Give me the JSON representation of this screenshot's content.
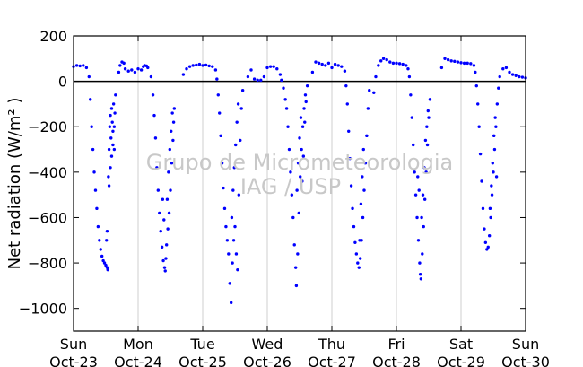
{
  "chart_data": {
    "type": "scatter",
    "title": "",
    "ylabel": "Net radiation (W/m² )",
    "xlabel": "",
    "ylim": [
      -1100,
      200
    ],
    "yticks": [
      200,
      0,
      -200,
      -400,
      -600,
      -800,
      -1000
    ],
    "ytick_labels": [
      "200",
      "0",
      "−200",
      "−400",
      "−600",
      "−800",
      "−1000"
    ],
    "xlim": [
      0,
      7
    ],
    "xticks": [
      {
        "value": 0,
        "day": "Sun",
        "date": "Oct-23"
      },
      {
        "value": 1,
        "day": "Mon",
        "date": "Oct-24"
      },
      {
        "value": 2,
        "day": "Tue",
        "date": "Oct-25"
      },
      {
        "value": 3,
        "day": "Wed",
        "date": "Oct-26"
      },
      {
        "value": 4,
        "day": "Thu",
        "date": "Oct-27"
      },
      {
        "value": 5,
        "day": "Fri",
        "date": "Oct-28"
      },
      {
        "value": 6,
        "day": "Sat",
        "date": "Oct-29"
      },
      {
        "value": 7,
        "day": "Sun",
        "date": "Oct-30"
      }
    ],
    "grid": "vertical",
    "zero_line": true,
    "series_color": "#0000ff",
    "watermark": [
      "Grupo de Micrometeorologia",
      "IAG / USP"
    ],
    "series": [
      {
        "values": [
          [
            0.0,
            65
          ],
          [
            0.05,
            70
          ],
          [
            0.1,
            68
          ],
          [
            0.15,
            70
          ],
          [
            0.2,
            60
          ],
          [
            0.24,
            20
          ],
          [
            0.26,
            -80
          ],
          [
            0.28,
            -200
          ],
          [
            0.3,
            -300
          ],
          [
            0.32,
            -400
          ],
          [
            0.34,
            -480
          ],
          [
            0.36,
            -560
          ],
          [
            0.38,
            -640
          ],
          [
            0.4,
            -700
          ],
          [
            0.42,
            -740
          ],
          [
            0.44,
            -770
          ],
          [
            0.46,
            -790
          ],
          [
            0.48,
            -800
          ],
          [
            0.5,
            -810
          ],
          [
            0.52,
            -820
          ],
          [
            0.53,
            -830
          ],
          [
            0.51,
            -700
          ],
          [
            0.52,
            -660
          ],
          [
            0.54,
            -420
          ],
          [
            0.55,
            -300
          ],
          [
            0.56,
            -200
          ],
          [
            0.57,
            -150
          ],
          [
            0.58,
            -250
          ],
          [
            0.59,
            -120
          ],
          [
            0.6,
            -180
          ],
          [
            0.61,
            -280
          ],
          [
            0.62,
            -100
          ],
          [
            0.63,
            -200
          ],
          [
            0.64,
            -140
          ],
          [
            0.65,
            -60
          ],
          [
            0.55,
            -460
          ],
          [
            0.57,
            -380
          ],
          [
            0.59,
            -330
          ],
          [
            0.61,
            -220
          ],
          [
            0.63,
            -300
          ],
          [
            0.7,
            40
          ],
          [
            0.72,
            70
          ],
          [
            0.75,
            85
          ],
          [
            0.78,
            80
          ],
          [
            0.8,
            55
          ],
          [
            0.85,
            45
          ],
          [
            0.9,
            50
          ],
          [
            0.95,
            40
          ],
          [
            1.0,
            55
          ],
          [
            1.05,
            50
          ],
          [
            1.08,
            65
          ],
          [
            1.1,
            70
          ],
          [
            1.13,
            68
          ],
          [
            1.15,
            60
          ],
          [
            1.2,
            20
          ],
          [
            1.23,
            -60
          ],
          [
            1.25,
            -150
          ],
          [
            1.27,
            -250
          ],
          [
            1.29,
            -380
          ],
          [
            1.31,
            -480
          ],
          [
            1.33,
            -580
          ],
          [
            1.35,
            -660
          ],
          [
            1.37,
            -730
          ],
          [
            1.39,
            -790
          ],
          [
            1.41,
            -820
          ],
          [
            1.42,
            -835
          ],
          [
            1.43,
            -780
          ],
          [
            1.38,
            -520
          ],
          [
            1.4,
            -610
          ],
          [
            1.44,
            -720
          ],
          [
            1.46,
            -650
          ],
          [
            1.48,
            -580
          ],
          [
            1.47,
            -400
          ],
          [
            1.49,
            -300
          ],
          [
            1.51,
            -220
          ],
          [
            1.53,
            -140
          ],
          [
            1.55,
            -180
          ],
          [
            1.5,
            -480
          ],
          [
            1.52,
            -360
          ],
          [
            1.54,
            -260
          ],
          [
            1.56,
            -120
          ],
          [
            1.45,
            -520
          ],
          [
            1.7,
            30
          ],
          [
            1.75,
            55
          ],
          [
            1.8,
            65
          ],
          [
            1.85,
            70
          ],
          [
            1.9,
            72
          ],
          [
            1.95,
            75
          ],
          [
            2.0,
            70
          ],
          [
            2.05,
            72
          ],
          [
            2.1,
            68
          ],
          [
            2.15,
            65
          ],
          [
            2.2,
            50
          ],
          [
            2.22,
            10
          ],
          [
            2.24,
            -60
          ],
          [
            2.26,
            -140
          ],
          [
            2.28,
            -240
          ],
          [
            2.3,
            -360
          ],
          [
            2.32,
            -470
          ],
          [
            2.34,
            -560
          ],
          [
            2.36,
            -640
          ],
          [
            2.38,
            -700
          ],
          [
            2.4,
            -760
          ],
          [
            2.42,
            -890
          ],
          [
            2.44,
            -975
          ],
          [
            2.46,
            -800
          ],
          [
            2.48,
            -700
          ],
          [
            2.45,
            -600
          ],
          [
            2.47,
            -480
          ],
          [
            2.49,
            -380
          ],
          [
            2.51,
            -280
          ],
          [
            2.53,
            -180
          ],
          [
            2.55,
            -100
          ],
          [
            2.5,
            -640
          ],
          [
            2.52,
            -760
          ],
          [
            2.54,
            -830
          ],
          [
            2.56,
            -500
          ],
          [
            2.58,
            -260
          ],
          [
            2.6,
            -120
          ],
          [
            2.62,
            -40
          ],
          [
            2.7,
            20
          ],
          [
            2.75,
            50
          ],
          [
            2.8,
            10
          ],
          [
            2.85,
            5
          ],
          [
            2.9,
            5
          ],
          [
            2.95,
            20
          ],
          [
            3.0,
            60
          ],
          [
            3.05,
            65
          ],
          [
            3.1,
            65
          ],
          [
            3.15,
            55
          ],
          [
            3.2,
            30
          ],
          [
            3.22,
            5
          ],
          [
            3.25,
            -30
          ],
          [
            3.28,
            -80
          ],
          [
            3.3,
            -120
          ],
          [
            3.32,
            -200
          ],
          [
            3.34,
            -300
          ],
          [
            3.36,
            -400
          ],
          [
            3.38,
            -500
          ],
          [
            3.4,
            -600
          ],
          [
            3.42,
            -720
          ],
          [
            3.44,
            -820
          ],
          [
            3.45,
            -900
          ],
          [
            3.47,
            -760
          ],
          [
            3.49,
            -580
          ],
          [
            3.51,
            -420
          ],
          [
            3.53,
            -300
          ],
          [
            3.55,
            -200
          ],
          [
            3.57,
            -120
          ],
          [
            3.59,
            -60
          ],
          [
            3.46,
            -480
          ],
          [
            3.48,
            -360
          ],
          [
            3.5,
            -250
          ],
          [
            3.52,
            -160
          ],
          [
            3.54,
            -440
          ],
          [
            3.56,
            -330
          ],
          [
            3.58,
            -180
          ],
          [
            3.6,
            -90
          ],
          [
            3.62,
            -20
          ],
          [
            3.7,
            40
          ],
          [
            3.75,
            85
          ],
          [
            3.8,
            80
          ],
          [
            3.85,
            75
          ],
          [
            3.9,
            70
          ],
          [
            3.95,
            80
          ],
          [
            4.0,
            60
          ],
          [
            4.05,
            75
          ],
          [
            4.1,
            70
          ],
          [
            4.15,
            65
          ],
          [
            4.2,
            45
          ],
          [
            4.22,
            -20
          ],
          [
            4.24,
            -100
          ],
          [
            4.26,
            -220
          ],
          [
            4.28,
            -340
          ],
          [
            4.3,
            -460
          ],
          [
            4.32,
            -560
          ],
          [
            4.34,
            -640
          ],
          [
            4.36,
            -710
          ],
          [
            4.38,
            -760
          ],
          [
            4.4,
            -800
          ],
          [
            4.42,
            -820
          ],
          [
            4.44,
            -780
          ],
          [
            4.46,
            -700
          ],
          [
            4.48,
            -600
          ],
          [
            4.5,
            -480
          ],
          [
            4.52,
            -360
          ],
          [
            4.54,
            -240
          ],
          [
            4.56,
            -120
          ],
          [
            4.58,
            -40
          ],
          [
            4.43,
            -700
          ],
          [
            4.45,
            -540
          ],
          [
            4.47,
            -420
          ],
          [
            4.49,
            -300
          ],
          [
            4.65,
            -50
          ],
          [
            4.68,
            20
          ],
          [
            4.72,
            70
          ],
          [
            4.76,
            90
          ],
          [
            4.8,
            100
          ],
          [
            4.85,
            95
          ],
          [
            4.9,
            85
          ],
          [
            4.95,
            80
          ],
          [
            5.0,
            80
          ],
          [
            5.05,
            78
          ],
          [
            5.1,
            75
          ],
          [
            5.15,
            70
          ],
          [
            5.18,
            55
          ],
          [
            5.2,
            20
          ],
          [
            5.22,
            -60
          ],
          [
            5.24,
            -160
          ],
          [
            5.26,
            -280
          ],
          [
            5.28,
            -400
          ],
          [
            5.3,
            -500
          ],
          [
            5.32,
            -600
          ],
          [
            5.34,
            -700
          ],
          [
            5.36,
            -800
          ],
          [
            5.37,
            -850
          ],
          [
            5.38,
            -870
          ],
          [
            5.4,
            -760
          ],
          [
            5.42,
            -640
          ],
          [
            5.44,
            -520
          ],
          [
            5.46,
            -400
          ],
          [
            5.48,
            -280
          ],
          [
            5.5,
            -160
          ],
          [
            5.52,
            -80
          ],
          [
            5.39,
            -600
          ],
          [
            5.41,
            -500
          ],
          [
            5.43,
            -380
          ],
          [
            5.45,
            -260
          ],
          [
            5.47,
            -200
          ],
          [
            5.49,
            -130
          ],
          [
            5.33,
            -420
          ],
          [
            5.35,
            -480
          ],
          [
            5.7,
            60
          ],
          [
            5.75,
            100
          ],
          [
            5.8,
            95
          ],
          [
            5.85,
            90
          ],
          [
            5.9,
            88
          ],
          [
            5.95,
            85
          ],
          [
            6.0,
            82
          ],
          [
            6.05,
            80
          ],
          [
            6.1,
            80
          ],
          [
            6.15,
            78
          ],
          [
            6.2,
            70
          ],
          [
            6.22,
            40
          ],
          [
            6.24,
            -20
          ],
          [
            6.26,
            -100
          ],
          [
            6.28,
            -200
          ],
          [
            6.3,
            -320
          ],
          [
            6.32,
            -440
          ],
          [
            6.34,
            -560
          ],
          [
            6.36,
            -650
          ],
          [
            6.38,
            -710
          ],
          [
            6.4,
            -740
          ],
          [
            6.42,
            -730
          ],
          [
            6.44,
            -680
          ],
          [
            6.46,
            -600
          ],
          [
            6.48,
            -500
          ],
          [
            6.5,
            -400
          ],
          [
            6.52,
            -300
          ],
          [
            6.54,
            -200
          ],
          [
            6.56,
            -100
          ],
          [
            6.58,
            -30
          ],
          [
            6.45,
            -560
          ],
          [
            6.47,
            -460
          ],
          [
            6.49,
            -360
          ],
          [
            6.51,
            -240
          ],
          [
            6.53,
            -160
          ],
          [
            6.55,
            -420
          ],
          [
            6.6,
            20
          ],
          [
            6.65,
            55
          ],
          [
            6.7,
            60
          ],
          [
            6.75,
            40
          ],
          [
            6.8,
            30
          ],
          [
            6.85,
            25
          ],
          [
            6.9,
            20
          ],
          [
            6.95,
            18
          ],
          [
            7.0,
            15
          ]
        ]
      }
    ]
  }
}
